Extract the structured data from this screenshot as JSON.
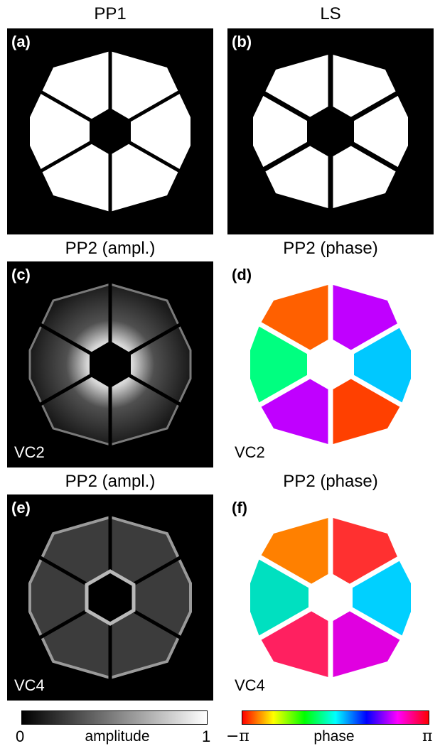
{
  "titles": {
    "a": "PP1",
    "b": "LS",
    "c": "PP2 (ampl.)",
    "d": "PP2 (phase)",
    "e": "PP2 (ampl.)",
    "f": "PP2 (phase)"
  },
  "panel_labels": {
    "a": "(a)",
    "b": "(b)",
    "c": "(c)",
    "d": "(d)",
    "e": "(e)",
    "f": "(f)"
  },
  "vc_labels": {
    "c": "VC2",
    "d": "VC2",
    "e": "VC4",
    "f": "VC4"
  },
  "colorbars": {
    "amplitude": {
      "min": "0",
      "label": "amplitude",
      "max": "1",
      "colors": [
        "#000000",
        "#ffffff"
      ]
    },
    "phase": {
      "min": "−π",
      "label": "phase",
      "max": "π",
      "colors": [
        "#ff0000",
        "#ffff00",
        "#00ff00",
        "#00ffff",
        "#0000ff",
        "#ff00ff",
        "#ff0000"
      ]
    }
  }
}
